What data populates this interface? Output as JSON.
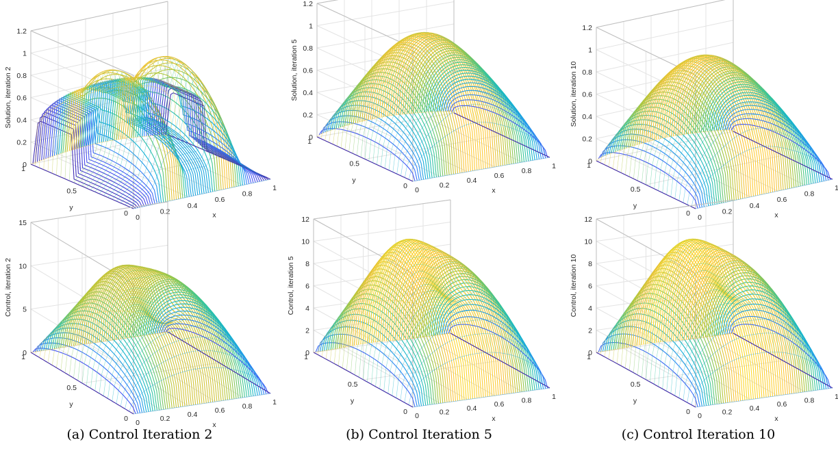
{
  "captions": [
    "(a) Control Iteration 2",
    "(b) Control Iteration 5",
    "(c) Control Iteration 10"
  ],
  "chart_data": [
    {
      "type": "surface",
      "variant": "solution-2",
      "zlabel": "Solution, iteration 2",
      "xlabel": "x",
      "ylabel": "y",
      "xticks": [
        "0",
        "0.2",
        "0.4",
        "0.6",
        "0.8",
        "1"
      ],
      "yticks": [
        "0",
        "0.5",
        "1"
      ],
      "zticks": [
        "0",
        "0.2",
        "0.4",
        "0.6",
        "0.8",
        "1",
        "1.2"
      ],
      "zlim": [
        0,
        1.2
      ],
      "grid": true,
      "colormap": "parula"
    },
    {
      "type": "surface",
      "variant": "solution-5",
      "zlabel": "Solution, iteration 5",
      "xlabel": "x",
      "ylabel": "y",
      "xticks": [
        "0",
        "0.2",
        "0.4",
        "0.6",
        "0.8",
        "1"
      ],
      "yticks": [
        "0",
        "0.5",
        "1"
      ],
      "zticks": [
        "0",
        "0.2",
        "0.4",
        "0.6",
        "0.8",
        "1",
        "1.2"
      ],
      "zlim": [
        0,
        1.2
      ],
      "grid": true,
      "colormap": "parula"
    },
    {
      "type": "surface",
      "variant": "solution-10",
      "zlabel": "Solution, iteration 10",
      "xlabel": "x",
      "ylabel": "y",
      "xticks": [
        "0",
        "0.2",
        "0.4",
        "0.6",
        "0.8",
        "1"
      ],
      "yticks": [
        "0",
        "0.5",
        "1"
      ],
      "zticks": [
        "0",
        "0.2",
        "0.4",
        "0.6",
        "0.8",
        "1",
        "1.2"
      ],
      "zlim": [
        0,
        1.2
      ],
      "grid": true,
      "colormap": "parula"
    },
    {
      "type": "surface",
      "variant": "control-2",
      "zlabel": "Control, iteration 2",
      "xlabel": "x",
      "ylabel": "y",
      "xticks": [
        "0",
        "0.2",
        "0.4",
        "0.6",
        "0.8",
        "1"
      ],
      "yticks": [
        "0",
        "0.5",
        "1"
      ],
      "zticks": [
        "0",
        "5",
        "10",
        "15"
      ],
      "zlim": [
        0,
        15
      ],
      "grid": true,
      "colormap": "parula"
    },
    {
      "type": "surface",
      "variant": "control-5",
      "zlabel": "Control, iteration 5",
      "xlabel": "x",
      "ylabel": "y",
      "xticks": [
        "0",
        "0.2",
        "0.4",
        "0.6",
        "0.8",
        "1"
      ],
      "yticks": [
        "0",
        "0.5",
        "1"
      ],
      "zticks": [
        "0",
        "2",
        "4",
        "6",
        "8",
        "10",
        "12"
      ],
      "zlim": [
        0,
        12
      ],
      "grid": true,
      "colormap": "parula"
    },
    {
      "type": "surface",
      "variant": "control-10",
      "zlabel": "Control, iteration 10",
      "xlabel": "x",
      "ylabel": "y",
      "xticks": [
        "0",
        "0.2",
        "0.4",
        "0.6",
        "0.8",
        "1"
      ],
      "yticks": [
        "0",
        "0.5",
        "1"
      ],
      "zticks": [
        "0",
        "2",
        "4",
        "6",
        "8",
        "10",
        "12"
      ],
      "zlim": [
        0,
        12
      ],
      "grid": true,
      "colormap": "parula"
    }
  ]
}
